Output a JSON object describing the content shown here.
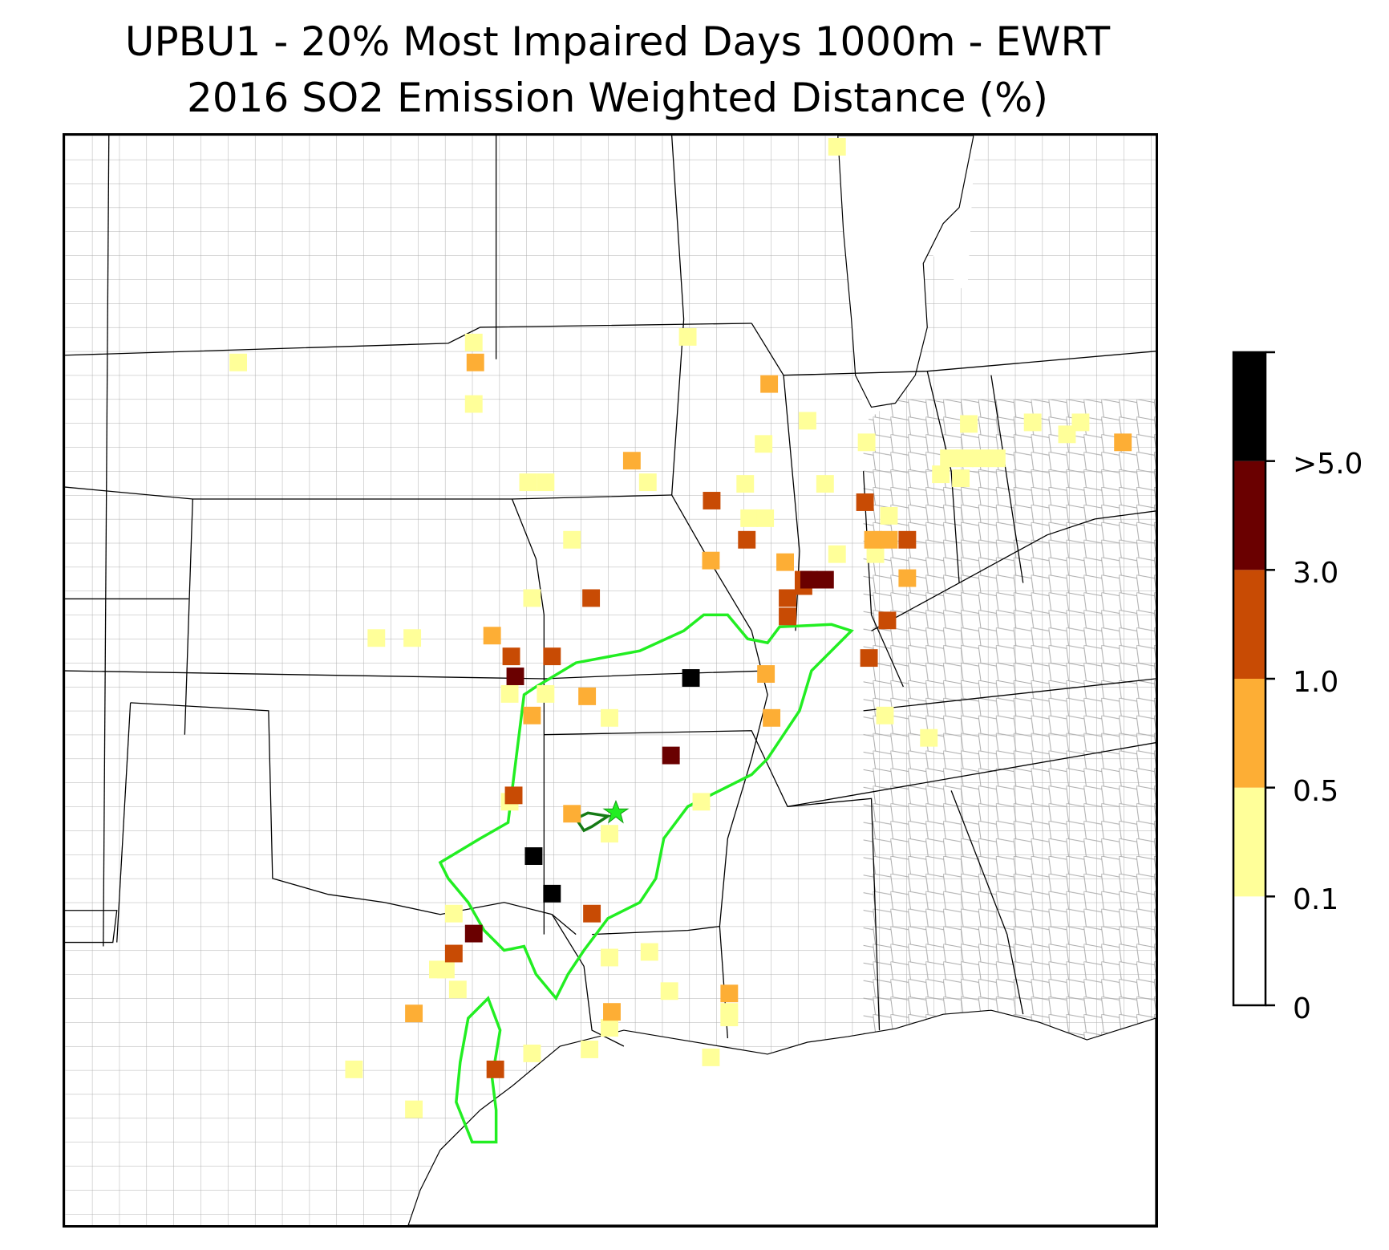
{
  "title": {
    "line1": "UPBU1 - 20% Most Impaired Days 1000m - EWRT",
    "line2": "2016 SO2 Emission Weighted Distance (%)"
  },
  "colorbar": {
    "tick_labels": [
      ">5.0",
      "3.0",
      "1.0",
      "0.5",
      "0.1",
      "0"
    ],
    "bins": [
      {
        "range": "0-0.1",
        "color": "#ffffff"
      },
      {
        "range": "0.1-0.5",
        "color": "#ffff99"
      },
      {
        "range": "0.5-1.0",
        "color": "#fdae35"
      },
      {
        "range": "1.0-3.0",
        "color": "#c84b04"
      },
      {
        "range": "3.0-5.0",
        "color": "#6a0000"
      },
      {
        "range": ">5.0",
        "color": "#000000"
      }
    ]
  },
  "colors": {
    "contour_outer": "#22ee22",
    "contour_inner": "#157a15",
    "site_marker": "#22ee22",
    "county_lines": "#999999",
    "state_lines": "#000000"
  },
  "map": {
    "region": "South-Central / Midwest United States",
    "site_marker": "star-icon",
    "cells_by_bin": {
      "0.1-0.5": 55,
      "0.5-1.0": 18,
      "1.0-3.0": 17,
      "3.0-5.0": 5,
      ">5.0": 3
    }
  }
}
